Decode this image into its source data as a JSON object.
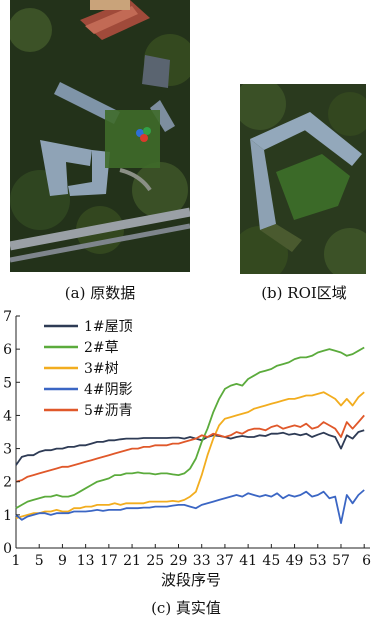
{
  "captions": {
    "a": "(a) 原数据",
    "b": "(b) ROI区域",
    "c": "(c) 真实值"
  },
  "colors": {
    "roof": "#2e3b55",
    "grass": "#5bab3c",
    "tree": "#f2ad1f",
    "shadow": "#3b66c4",
    "asphalt": "#e0582a"
  },
  "chart_data": {
    "type": "line",
    "xlabel": "波段序号",
    "ylabel": "",
    "xlim": [
      1,
      62
    ],
    "ylim": [
      0,
      7
    ],
    "x_ticks": [
      "1",
      "5",
      "9",
      "13",
      "17",
      "21",
      "25",
      "29",
      "33",
      "37",
      "41",
      "45",
      "49",
      "53",
      "57",
      "6"
    ],
    "y_ticks": [
      "0",
      "1",
      "2",
      "3",
      "4",
      "5",
      "6",
      "7"
    ],
    "legend_position": "top-left",
    "series": [
      {
        "name": "1#屋顶",
        "values": [
          2.5,
          2.75,
          2.8,
          2.8,
          2.9,
          2.95,
          2.95,
          3.0,
          3.0,
          3.05,
          3.05,
          3.1,
          3.1,
          3.15,
          3.2,
          3.2,
          3.25,
          3.25,
          3.28,
          3.3,
          3.3,
          3.3,
          3.32,
          3.32,
          3.32,
          3.32,
          3.32,
          3.33,
          3.33,
          3.3,
          3.35,
          3.3,
          3.25,
          3.35,
          3.4,
          3.38,
          3.35,
          3.3,
          3.35,
          3.38,
          3.35,
          3.35,
          3.4,
          3.38,
          3.45,
          3.45,
          3.48,
          3.42,
          3.45,
          3.4,
          3.45,
          3.35,
          3.42,
          3.48,
          3.4,
          3.35,
          3.0,
          3.4,
          3.3,
          3.5,
          3.55
        ]
      },
      {
        "name": "2#草",
        "values": [
          1.2,
          1.3,
          1.4,
          1.45,
          1.5,
          1.55,
          1.55,
          1.6,
          1.55,
          1.55,
          1.6,
          1.7,
          1.8,
          1.9,
          2.0,
          2.05,
          2.1,
          2.2,
          2.2,
          2.25,
          2.25,
          2.28,
          2.25,
          2.25,
          2.22,
          2.25,
          2.25,
          2.22,
          2.2,
          2.25,
          2.4,
          2.7,
          3.2,
          3.6,
          4.1,
          4.5,
          4.8,
          4.9,
          4.95,
          4.9,
          5.1,
          5.2,
          5.3,
          5.35,
          5.4,
          5.5,
          5.55,
          5.6,
          5.7,
          5.75,
          5.75,
          5.8,
          5.9,
          5.95,
          6.0,
          5.95,
          5.9,
          5.8,
          5.85,
          5.95,
          6.05
        ]
      },
      {
        "name": "3#树",
        "values": [
          0.9,
          0.95,
          1.0,
          1.05,
          1.05,
          1.1,
          1.1,
          1.15,
          1.1,
          1.1,
          1.2,
          1.2,
          1.25,
          1.25,
          1.3,
          1.3,
          1.3,
          1.35,
          1.3,
          1.35,
          1.35,
          1.35,
          1.35,
          1.4,
          1.4,
          1.4,
          1.4,
          1.42,
          1.4,
          1.45,
          1.55,
          1.7,
          2.2,
          2.8,
          3.3,
          3.7,
          3.9,
          3.95,
          4.0,
          4.05,
          4.1,
          4.2,
          4.25,
          4.3,
          4.35,
          4.4,
          4.45,
          4.5,
          4.5,
          4.55,
          4.6,
          4.6,
          4.65,
          4.7,
          4.6,
          4.5,
          4.3,
          4.5,
          4.3,
          4.55,
          4.7
        ]
      },
      {
        "name": "4#阴影",
        "values": [
          1.0,
          0.85,
          0.95,
          1.0,
          1.05,
          1.05,
          1.0,
          1.05,
          1.05,
          1.05,
          1.1,
          1.1,
          1.1,
          1.12,
          1.15,
          1.12,
          1.15,
          1.15,
          1.15,
          1.2,
          1.2,
          1.2,
          1.22,
          1.22,
          1.25,
          1.25,
          1.25,
          1.28,
          1.3,
          1.3,
          1.25,
          1.2,
          1.3,
          1.35,
          1.4,
          1.45,
          1.5,
          1.55,
          1.6,
          1.55,
          1.65,
          1.6,
          1.55,
          1.6,
          1.55,
          1.65,
          1.5,
          1.6,
          1.55,
          1.6,
          1.7,
          1.55,
          1.6,
          1.7,
          1.5,
          1.55,
          0.75,
          1.6,
          1.35,
          1.6,
          1.75
        ]
      },
      {
        "name": "5#沥青",
        "values": [
          2.0,
          2.05,
          2.15,
          2.2,
          2.25,
          2.3,
          2.35,
          2.4,
          2.45,
          2.45,
          2.5,
          2.55,
          2.6,
          2.65,
          2.7,
          2.75,
          2.8,
          2.85,
          2.9,
          2.95,
          3.0,
          3.0,
          3.05,
          3.05,
          3.1,
          3.1,
          3.1,
          3.15,
          3.15,
          3.2,
          3.25,
          3.3,
          3.4,
          3.35,
          3.45,
          3.4,
          3.35,
          3.4,
          3.5,
          3.45,
          3.55,
          3.6,
          3.6,
          3.55,
          3.65,
          3.7,
          3.6,
          3.65,
          3.7,
          3.65,
          3.75,
          3.6,
          3.65,
          3.8,
          3.7,
          3.6,
          3.35,
          3.8,
          3.6,
          3.8,
          4.0
        ]
      }
    ]
  }
}
